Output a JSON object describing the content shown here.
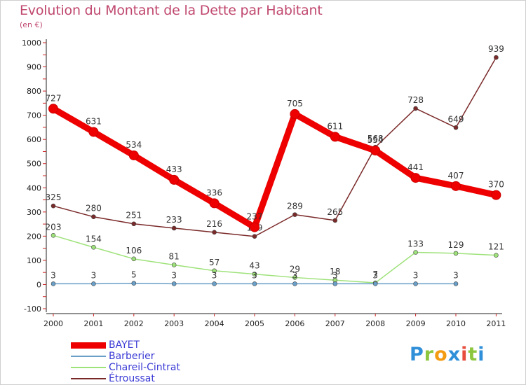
{
  "title": "Evolution du Montant de la Dette par Habitant",
  "subtitle": "(en €)",
  "logo_text": "Proxiti",
  "logo_colors": [
    "#2f8fd8",
    "#8bc63e",
    "#f39c12",
    "#2f8fd8",
    "#e74c3c",
    "#8bc63e",
    "#2f8fd8"
  ],
  "chart_data": {
    "type": "line",
    "title": "Evolution du Montant de la Dette par Habitant",
    "subtitle": "(en €)",
    "x": [
      "2000",
      "2001",
      "2002",
      "2003",
      "2004",
      "2005",
      "2006",
      "2007",
      "2008",
      "2009",
      "2010",
      "2011"
    ],
    "ylim": [
      -100,
      1000
    ],
    "yticks": [
      "-100",
      "0",
      "100",
      "200",
      "300",
      "400",
      "500",
      "600",
      "700",
      "800",
      "900",
      "1000"
    ],
    "grid": false,
    "legend_position": "bottom-left",
    "series": [
      {
        "name": "BAYET",
        "color": "#ee0000",
        "values": [
          727,
          631,
          534,
          433,
          336,
          237,
          705,
          611,
          554,
          441,
          407,
          370
        ],
        "labels": [
          "727",
          "631",
          "534",
          "433",
          "336",
          "237",
          "705",
          "611",
          "554",
          "441",
          "407",
          "370"
        ]
      },
      {
        "name": "Barberier",
        "color": "#6a9fc8",
        "values": [
          3,
          3,
          5,
          3,
          3,
          3,
          3,
          3,
          3,
          3,
          3,
          null
        ],
        "labels": [
          "3",
          "3",
          "5",
          "3",
          "3",
          "3",
          "3",
          "3",
          "3",
          "3",
          "3",
          ""
        ]
      },
      {
        "name": "Chareil-Cintrat",
        "color": "#9ee27a",
        "values": [
          203,
          154,
          106,
          81,
          57,
          43,
          29,
          18,
          7,
          133,
          129,
          121
        ],
        "labels": [
          "203",
          "154",
          "106",
          "81",
          "57",
          "43",
          "29",
          "18",
          "7",
          "133",
          "129",
          "121"
        ]
      },
      {
        "name": "Étroussat",
        "color": "#7b2a2a",
        "values": [
          325,
          280,
          251,
          233,
          216,
          199,
          289,
          265,
          568,
          728,
          649,
          939
        ],
        "labels": [
          "325",
          "280",
          "251",
          "233",
          "216",
          "199",
          "289",
          "265",
          "568",
          "728",
          "649",
          "939"
        ]
      }
    ]
  }
}
